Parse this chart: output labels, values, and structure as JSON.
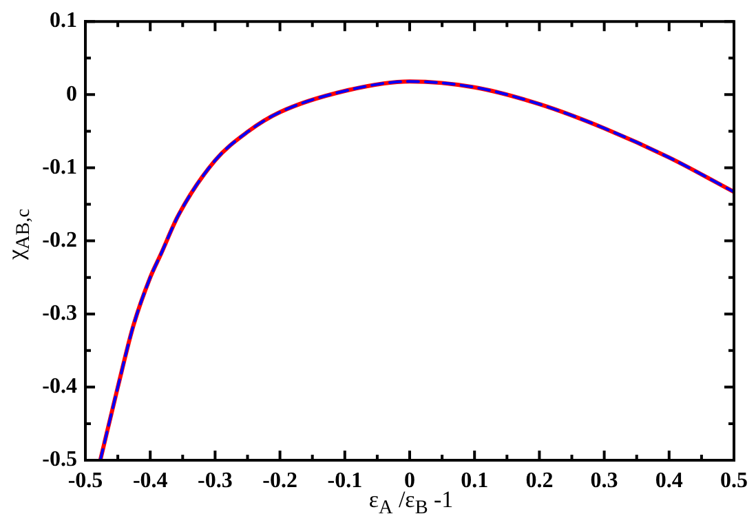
{
  "chart_data": {
    "type": "line",
    "xlabel": "ε$_{A}$ /ε$_{B}$ -1",
    "ylabel": "χ$_{AB,c}$",
    "x": [
      -0.477,
      -0.45,
      -0.426,
      -0.4,
      -0.384,
      -0.356,
      -0.3,
      -0.25,
      -0.2,
      -0.1,
      0,
      0.1,
      0.2,
      0.3,
      0.4,
      0.5
    ],
    "series": [
      {
        "color": "#ff0000",
        "line_style": "solid",
        "values": [
          -0.5,
          -0.4,
          -0.316,
          -0.25,
          -0.219,
          -0.164,
          -0.09,
          -0.051,
          -0.024,
          0.005,
          0.018,
          0.01,
          -0.013,
          -0.046,
          -0.086,
          -0.133
        ]
      },
      {
        "color": "#0000ff",
        "line_style": "dashed",
        "values": [
          -0.5,
          -0.4,
          -0.316,
          -0.25,
          -0.219,
          -0.164,
          -0.09,
          -0.051,
          -0.024,
          0.005,
          0.018,
          0.01,
          -0.013,
          -0.046,
          -0.086,
          -0.133
        ]
      }
    ],
    "xlim": [
      -0.5,
      0.5
    ],
    "xticks": [
      -0.5,
      {
        "value": -0.45,
        "label": null
      },
      -0.4,
      {
        "value": -0.35,
        "label": null
      },
      -0.3,
      {
        "value": -0.25,
        "label": null
      },
      -0.2,
      {
        "value": -0.15,
        "label": null
      },
      -0.1,
      {
        "value": -0.05,
        "label": null
      },
      0,
      {
        "value": 0.05,
        "label": null
      },
      0.1,
      {
        "value": 0.15,
        "label": null
      },
      0.2,
      {
        "value": 0.25,
        "label": null
      },
      0.3,
      {
        "value": 0.35,
        "label": null
      },
      0.4,
      {
        "value": 0.45,
        "label": null
      },
      0.5
    ],
    "ylim": [
      -0.5,
      0.1
    ],
    "yticks": [
      -0.5,
      {
        "value": -0.45,
        "label": null
      },
      -0.4,
      {
        "value": -0.35,
        "label": null
      },
      -0.3,
      {
        "value": -0.25,
        "label": null
      },
      -0.2,
      {
        "value": -0.15,
        "label": null
      },
      -0.1,
      {
        "value": -0.05,
        "label": null
      },
      0,
      {
        "value": 0.05,
        "label": null
      },
      0.1
    ],
    "grid": false,
    "legend": false,
    "marker": "none"
  }
}
